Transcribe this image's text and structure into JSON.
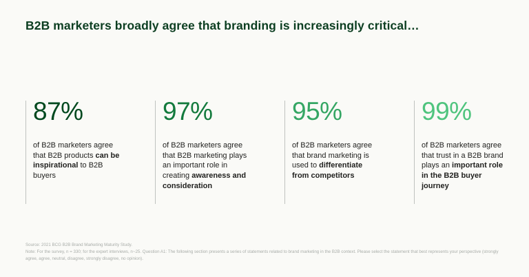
{
  "title": "B2B marketers broadly agree that branding is increasingly critical…",
  "colors": {
    "background": "#fafaf7",
    "title_text": "#0c3e21",
    "divider": "#bfc2bf",
    "body_text": "#222220",
    "footnote_text": "#a9ada9"
  },
  "stats": [
    {
      "value": "87%",
      "color": "#00491f",
      "description": [
        {
          "text": "of B2B marketers agree that B2B products ",
          "bold": false
        },
        {
          "text": "can be inspirational",
          "bold": true
        },
        {
          "text": " to B2B buyers",
          "bold": false
        }
      ]
    },
    {
      "value": "97%",
      "color": "#137a3d",
      "description": [
        {
          "text": "of B2B marketers agree that B2B marketing plays an important role in creating ",
          "bold": false
        },
        {
          "text": "awareness and consideration",
          "bold": true
        }
      ]
    },
    {
      "value": "95%",
      "color": "#35a664",
      "description": [
        {
          "text": "of B2B marketers agree that brand marketing is used to ",
          "bold": false
        },
        {
          "text": "differentiate from competitors",
          "bold": true
        }
      ]
    },
    {
      "value": "99%",
      "color": "#4fc47e",
      "description": [
        {
          "text": "of B2B marketers agree that trust in a B2B brand plays an ",
          "bold": false
        },
        {
          "text": "important role in the B2B buyer journey",
          "bold": true
        }
      ]
    }
  ],
  "footer": {
    "source": "Source: 2021 BCG B2B Brand Marketing Maturity Study.",
    "note": "Note: For the survey, n = 330; for the expert interviews, n~25. Question A1: The following section presents a series of statements related to brand marketing in the B2B context. Please select the statement that best represents your perspective (strongly agree, agree, neutral, disagree, strongly disagree, no opinion)."
  },
  "chart_data": {
    "type": "table",
    "title": "B2B marketers broadly agree that branding is increasingly critical…",
    "categories": [
      "B2B products can be inspirational to B2B buyers",
      "B2B marketing plays an important role in creating awareness and consideration",
      "brand marketing is used to differentiate from competitors",
      "trust in a B2B brand plays an important role in the B2B buyer journey"
    ],
    "values": [
      87,
      97,
      95,
      99
    ],
    "unit": "%",
    "source": "2021 BCG B2B Brand Marketing Maturity Study"
  }
}
